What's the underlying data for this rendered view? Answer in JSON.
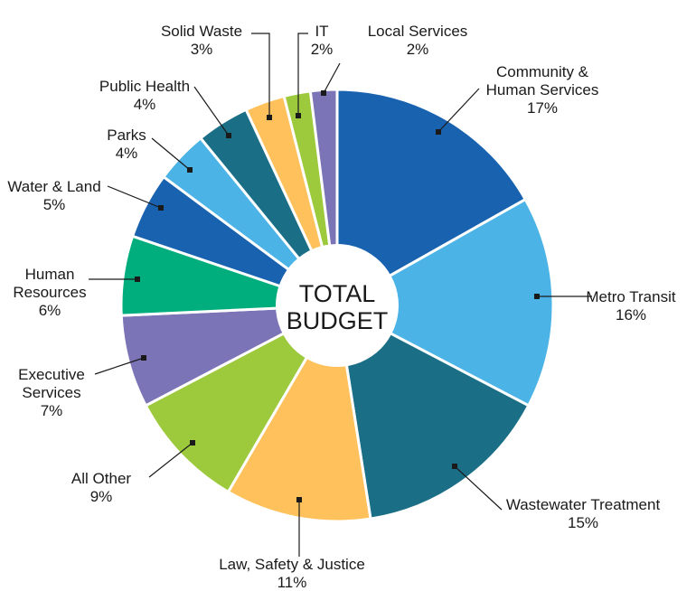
{
  "chart_data": {
    "type": "pie",
    "center_label": [
      "TOTAL",
      "BUDGET"
    ],
    "slices": [
      {
        "name": "Community & Human Services",
        "label_lines": [
          "Community &",
          "Human Services"
        ],
        "value": 17,
        "pct_label": "17%",
        "color": "#1862B0"
      },
      {
        "name": "Metro Transit",
        "label_lines": [
          "Metro Transit"
        ],
        "value": 16,
        "pct_label": "16%",
        "color": "#4CB3E6"
      },
      {
        "name": "Wastewater Treatment",
        "label_lines": [
          "Wastewater Treatment"
        ],
        "value": 15,
        "pct_label": "15%",
        "color": "#1A6E86"
      },
      {
        "name": "Law, Safety & Justice",
        "label_lines": [
          "Law, Safety & Justice"
        ],
        "value": 11,
        "pct_label": "11%",
        "color": "#FEC15C"
      },
      {
        "name": "All Other",
        "label_lines": [
          "All Other"
        ],
        "value": 9,
        "pct_label": "9%",
        "color": "#9DC93D"
      },
      {
        "name": "Executive Services",
        "label_lines": [
          "Executive",
          "Services"
        ],
        "value": 7,
        "pct_label": "7%",
        "color": "#7B74B6"
      },
      {
        "name": "Human Resources",
        "label_lines": [
          "Human",
          "Resources"
        ],
        "value": 6,
        "pct_label": "6%",
        "color": "#00AD7C"
      },
      {
        "name": "Water & Land",
        "label_lines": [
          "Water & Land"
        ],
        "value": 5,
        "pct_label": "5%",
        "color": "#1862B0"
      },
      {
        "name": "Parks",
        "label_lines": [
          "Parks"
        ],
        "value": 4,
        "pct_label": "4%",
        "color": "#4CB3E6"
      },
      {
        "name": "Public Health",
        "label_lines": [
          "Public Health"
        ],
        "value": 4,
        "pct_label": "4%",
        "color": "#1A6E86"
      },
      {
        "name": "Solid Waste",
        "label_lines": [
          "Solid Waste"
        ],
        "value": 3,
        "pct_label": "3%",
        "color": "#FEC15C"
      },
      {
        "name": "IT",
        "label_lines": [
          "IT"
        ],
        "value": 2,
        "pct_label": "2%",
        "color": "#9DC93D"
      },
      {
        "name": "Local Services",
        "label_lines": [
          "Local Services"
        ],
        "value": 2,
        "pct_label": "2%",
        "color": "#7B74B6"
      }
    ]
  }
}
